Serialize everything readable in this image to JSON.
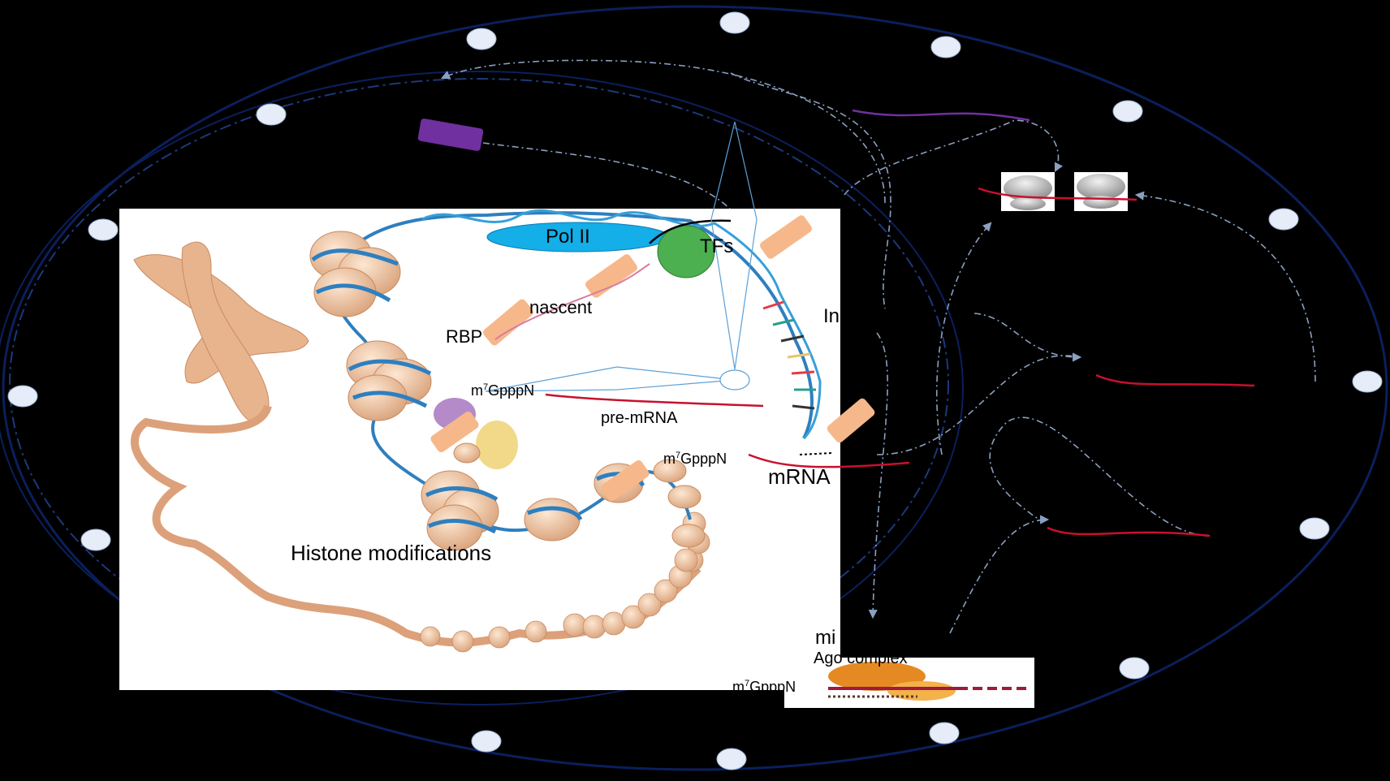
{
  "labels": {
    "pol2": "Pol II",
    "tfs": "TFs",
    "nascent": "nascent",
    "rbp": "RBP",
    "cap1": "m7GpppN",
    "premrna": "pre-mRNA",
    "cap2": "m7GpppN",
    "mrna": "mRNA",
    "histone": "Histone modifications",
    "in_trunc": "In",
    "mi_trunc": "mi",
    "ago": "Ago complex",
    "cap3": "m7GpppN"
  },
  "colors": {
    "background": "#000000",
    "panel": "#ffffff",
    "membrane": "#0b1f5c",
    "dotted": "#8aa0c0",
    "nuclear_pore": "#e6edf8",
    "dna": "#2e7fbf",
    "pol2": "#14aee8",
    "tfs": "#4caf50",
    "histone": "#f1c9a6",
    "rbp": "#f6b88a",
    "mrna": "#c8102e",
    "purple": "#7030a0",
    "ago": "#e58a22"
  }
}
